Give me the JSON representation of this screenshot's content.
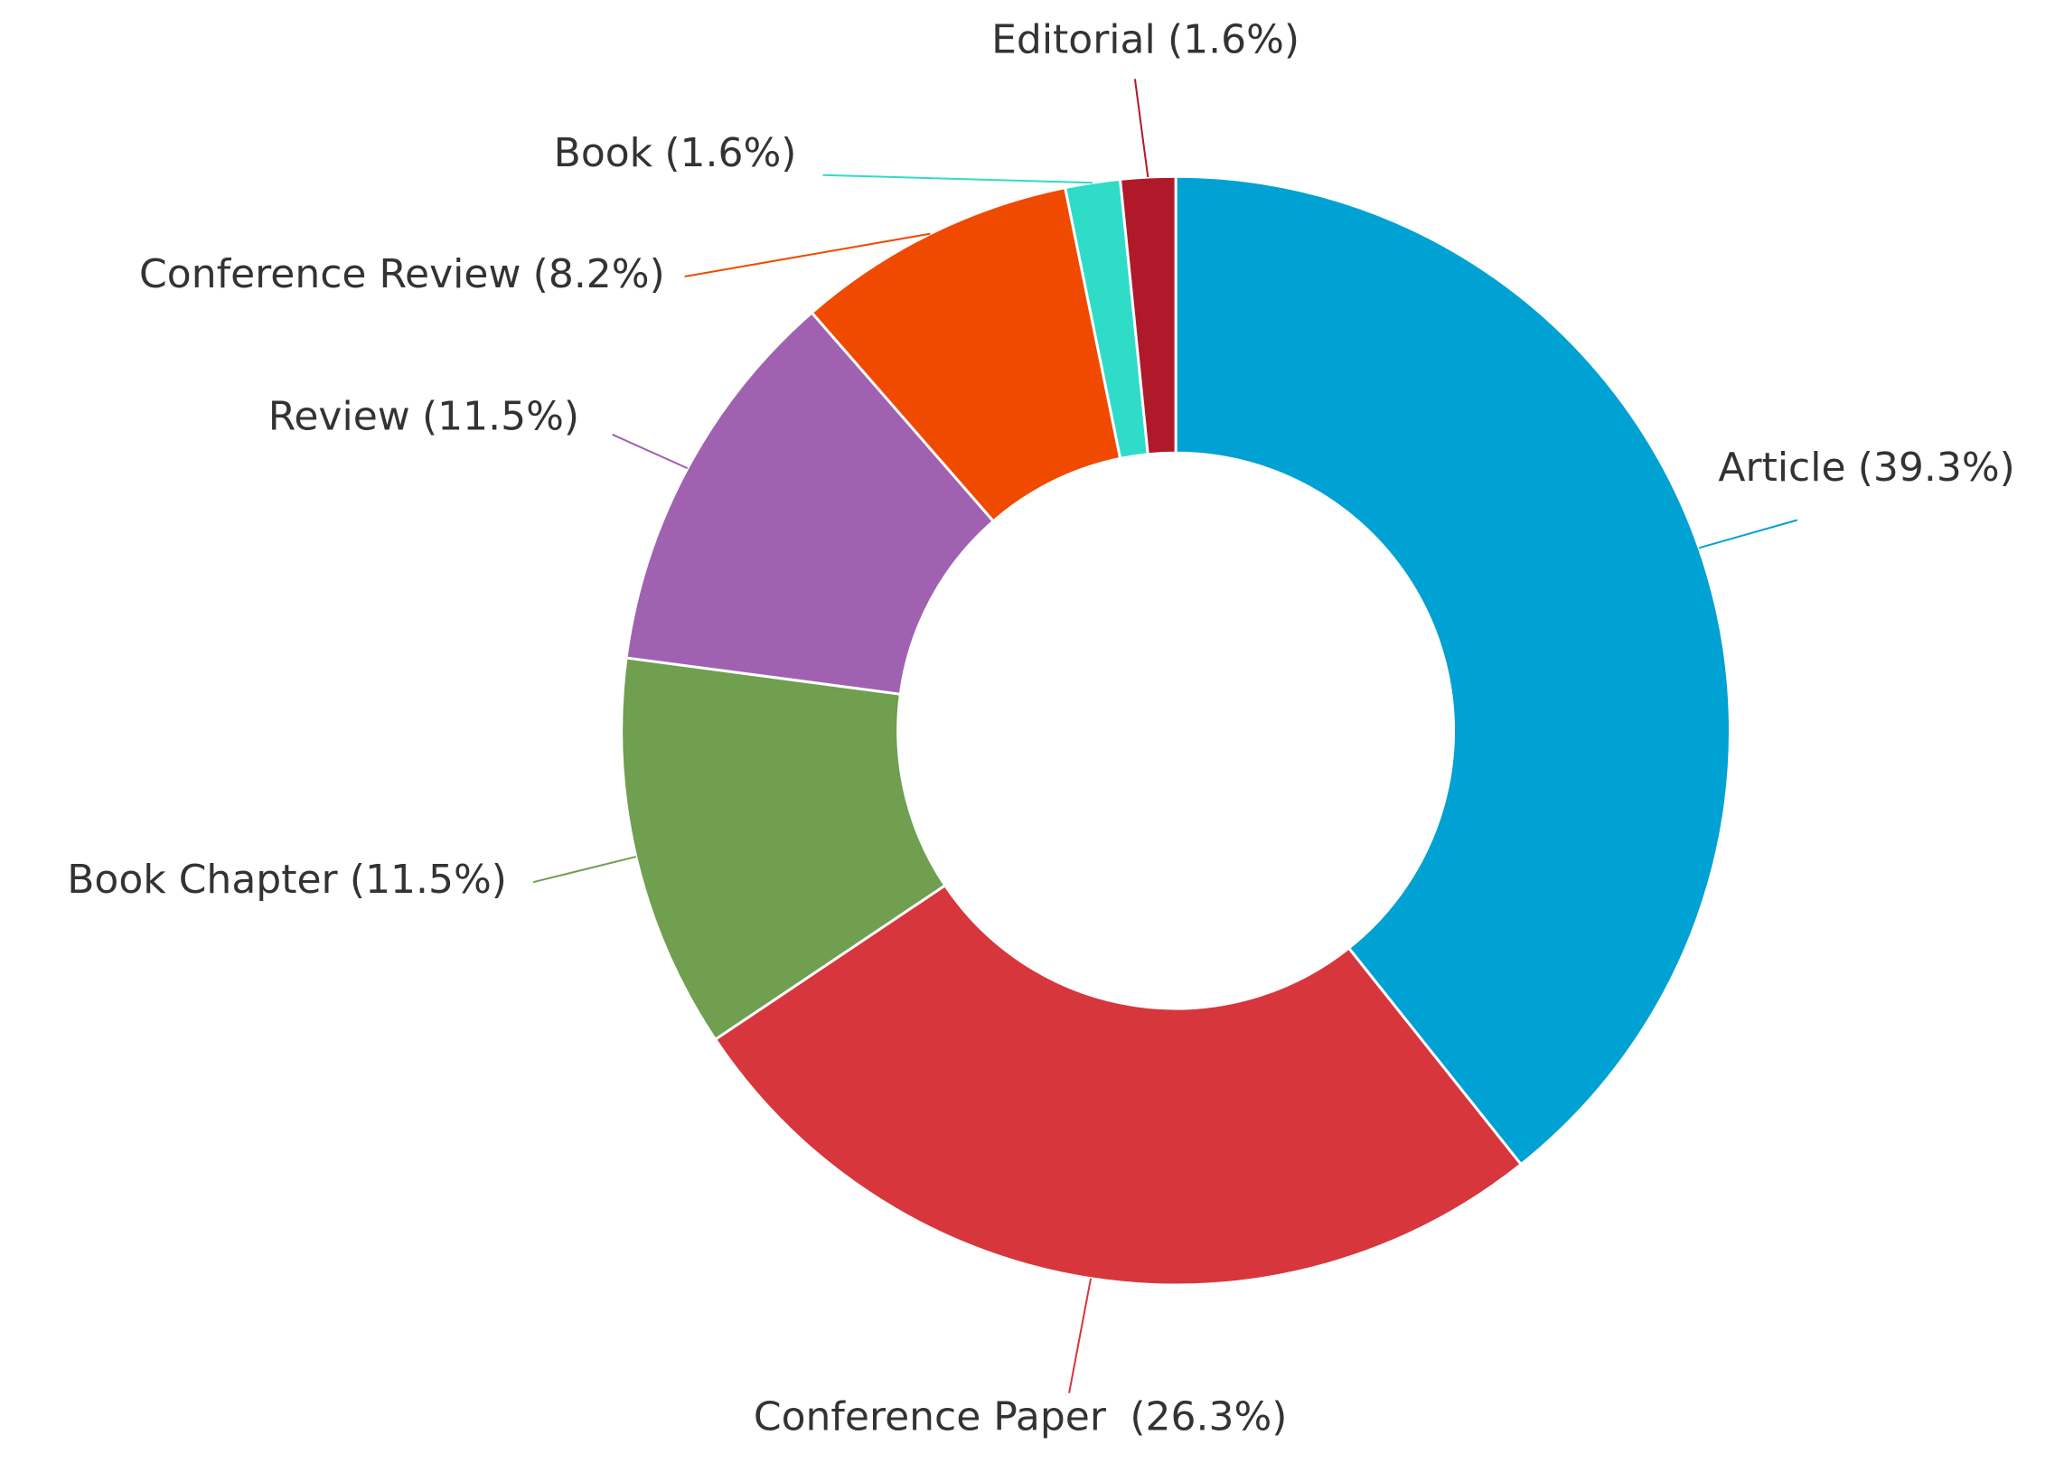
{
  "chart_data": {
    "type": "donut",
    "categories": [
      "Article",
      "Conference Paper",
      "Book Chapter",
      "Review",
      "Conference Review",
      "Book",
      "Editorial"
    ],
    "values": [
      39.3,
      26.3,
      11.5,
      11.5,
      8.2,
      1.6,
      1.6
    ],
    "value_labels": [
      "(39.3%)",
      "(26.3%)",
      "(11.5%)",
      "(11.5%)",
      "(8.2%)",
      "(1.6%)",
      "(1.6%)"
    ],
    "colors": [
      "#00a1d3",
      "#d6363c",
      "#6f9f4f",
      "#a062b0",
      "#f04a00",
      "#2edcc8",
      "#b0192a"
    ]
  }
}
